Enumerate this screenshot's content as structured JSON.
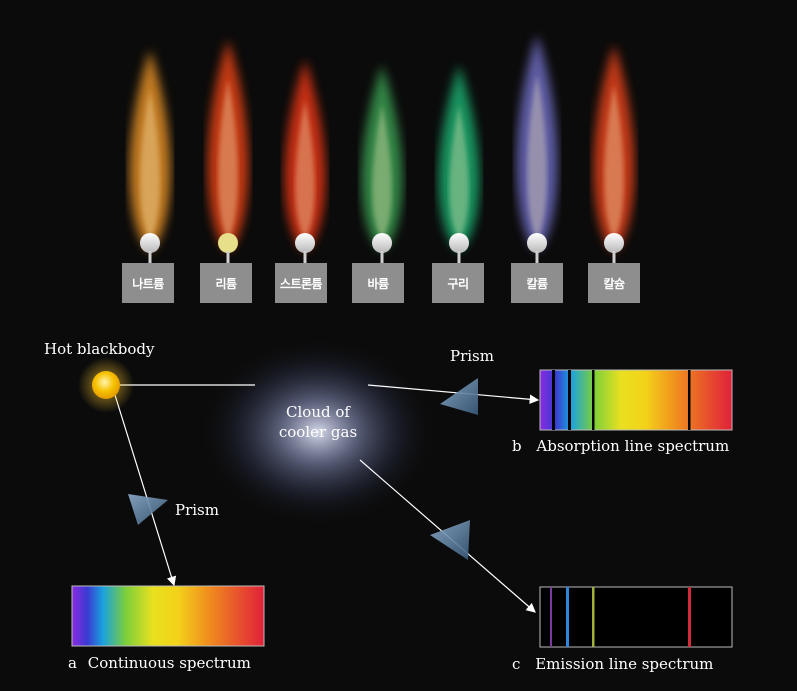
{
  "flames": [
    {
      "label": "나트륨",
      "color": "#ffa02a"
    },
    {
      "label": "리튬",
      "color": "#ff4a18"
    },
    {
      "label": "스트론튬",
      "color": "#ff3a14"
    },
    {
      "label": "바륨",
      "color": "#3fae5a"
    },
    {
      "label": "구리",
      "color": "#1fbf7a"
    },
    {
      "label": "칼륨",
      "color": "#7a78d8"
    },
    {
      "label": "칼슘",
      "color": "#ff4a1c"
    }
  ],
  "diagram": {
    "source_label": "Hot blackbody",
    "gas_cloud_label_line1": "Cloud of",
    "gas_cloud_label_line2": "cooler gas",
    "prism_label_top": "Prism",
    "prism_label_left": "Prism",
    "spectrum_a_letter": "a",
    "spectrum_a_label": "Continuous spectrum",
    "spectrum_b_letter": "b",
    "spectrum_b_label": "Absorption line spectrum",
    "spectrum_c_letter": "c",
    "spectrum_c_label": "Emission line spectrum"
  },
  "colors": {
    "background": "#0b0b0b",
    "label_box": "#8e8e8e",
    "sun": "#f7b500",
    "prism": "#6f8fb0"
  }
}
